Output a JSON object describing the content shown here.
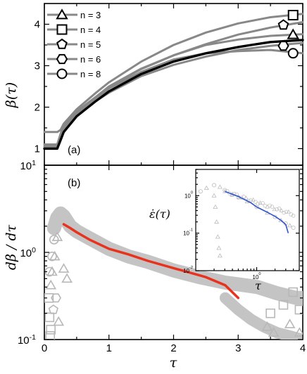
{
  "chart_data": [
    {
      "type": "line",
      "panel_label": "(a)",
      "ylabel": "β(τ)",
      "xlim": [
        0,
        4
      ],
      "ylim": [
        0.6,
        4.5
      ],
      "y_ticks": [
        "1",
        "2",
        "3",
        "4"
      ],
      "legend": {
        "placement": "top-left",
        "entries": [
          {
            "marker": "triangle",
            "label": "n = 3"
          },
          {
            "marker": "square",
            "label": "n = 4"
          },
          {
            "marker": "pentagon",
            "label": "n = 5"
          },
          {
            "marker": "hexagon",
            "label": "n = 6"
          },
          {
            "marker": "circle",
            "label": "n = 8"
          }
        ]
      },
      "series": [
        {
          "marker": "triangle",
          "color": "#888888",
          "x": [
            0,
            0.2,
            0.25,
            0.3,
            0.5,
            0.8,
            1.0,
            1.5,
            2.0,
            2.5,
            3.0,
            3.5,
            4.0
          ],
          "y": [
            1.1,
            1.1,
            1.35,
            1.55,
            1.9,
            2.25,
            2.5,
            2.93,
            3.25,
            3.5,
            3.63,
            3.72,
            3.76
          ],
          "end_marker": [
            3.85,
            3.75
          ]
        },
        {
          "marker": "square",
          "color": "#888888",
          "x": [
            0,
            0.2,
            0.25,
            0.3,
            0.5,
            0.8,
            1.0,
            1.5,
            2.0,
            2.5,
            3.0,
            3.5,
            4.0
          ],
          "y": [
            1.4,
            1.4,
            1.45,
            1.6,
            1.95,
            2.35,
            2.6,
            3.1,
            3.5,
            3.8,
            4.02,
            4.17,
            4.25
          ],
          "end_marker": [
            3.85,
            4.22
          ]
        },
        {
          "marker": "pentagon",
          "color": "#888888",
          "x": [
            0,
            0.2,
            0.25,
            0.3,
            0.5,
            0.8,
            1.0,
            1.5,
            2.0,
            2.5,
            3.0,
            3.5,
            4.0
          ],
          "y": [
            1.0,
            1.0,
            1.3,
            1.5,
            1.87,
            2.25,
            2.48,
            2.92,
            3.25,
            3.52,
            3.75,
            3.92,
            4.05
          ],
          "end_marker": [
            3.7,
            3.98
          ]
        },
        {
          "marker": "hexagon",
          "color": "#888888",
          "x": [
            0,
            0.2,
            0.25,
            0.3,
            0.5,
            0.8,
            1.0,
            1.5,
            2.0,
            2.5,
            3.0,
            3.5,
            4.0
          ],
          "y": [
            1.05,
            1.05,
            1.28,
            1.46,
            1.8,
            2.15,
            2.35,
            2.75,
            3.02,
            3.22,
            3.38,
            3.48,
            3.55
          ],
          "end_marker": [
            3.7,
            3.48
          ]
        },
        {
          "marker": "circle",
          "color": "#888888",
          "x": [
            0,
            0.2,
            0.25,
            0.3,
            0.5,
            0.8,
            1.0,
            1.5,
            2.0,
            2.5,
            3.0,
            3.5,
            4.0
          ],
          "y": [
            1.1,
            1.1,
            1.3,
            1.5,
            1.85,
            2.22,
            2.45,
            2.85,
            3.15,
            3.3,
            3.35,
            3.38,
            3.3
          ],
          "end_marker": [
            3.85,
            3.3
          ]
        },
        {
          "color": "#000000",
          "x": [
            0,
            0.2,
            0.25,
            0.3,
            0.5,
            0.8,
            1.0,
            1.5,
            2.0,
            2.5,
            3.0,
            3.2,
            3.5,
            3.8,
            4.0
          ],
          "y": [
            1.0,
            1.0,
            1.2,
            1.4,
            1.78,
            2.15,
            2.38,
            2.8,
            3.1,
            3.3,
            3.45,
            3.5,
            3.57,
            3.6,
            3.62
          ]
        }
      ]
    },
    {
      "type": "scatter",
      "panel_label": "(b)",
      "xlabel": "τ",
      "ylabel": "dβ / dτ",
      "xlim": [
        0,
        4
      ],
      "ylim": [
        0.1,
        10
      ],
      "yscale": "log",
      "x_ticks": [
        "0",
        "1",
        "2",
        "3",
        "4"
      ],
      "y_ticks": [
        {
          "base": "10",
          "exp": "-1",
          "value": 0.1
        },
        {
          "base": "10",
          "exp": "0",
          "value": 1
        },
        {
          "base": "10",
          "exp": "1",
          "value": 10
        }
      ],
      "gray_band": {
        "color": "#c4c4c4",
        "x": [
          0.15,
          0.2,
          0.25,
          0.3,
          0.4,
          0.5,
          0.7,
          1.0,
          1.3,
          1.6,
          2.0,
          2.4,
          2.8,
          3.0,
          3.3,
          3.6,
          3.9,
          4.0
        ],
        "y": [
          1.9,
          2.5,
          2.8,
          2.6,
          2.0,
          1.75,
          1.45,
          1.1,
          0.9,
          0.78,
          0.62,
          0.52,
          0.45,
          0.43,
          0.4,
          0.34,
          0.3,
          0.3
        ]
      },
      "red_line": {
        "color": "#e8321e",
        "x": [
          0.3,
          0.4,
          0.5,
          0.7,
          1.0,
          1.3,
          1.6,
          2.0,
          2.2,
          2.5,
          2.8,
          3.0
        ],
        "y": [
          2.1,
          1.9,
          1.7,
          1.4,
          1.1,
          0.95,
          0.8,
          0.66,
          0.6,
          0.52,
          0.42,
          0.3
        ]
      },
      "open_markers": {
        "color": "#b8b8b8",
        "points": [
          {
            "m": "triangle",
            "x": 0.1,
            "y": 0.42
          },
          {
            "m": "triangle",
            "x": 0.12,
            "y": 0.6
          },
          {
            "m": "triangle",
            "x": 0.16,
            "y": 0.9
          },
          {
            "m": "triangle",
            "x": 0.2,
            "y": 1.5
          },
          {
            "m": "triangle",
            "x": 0.3,
            "y": 0.65
          },
          {
            "m": "triangle",
            "x": 0.35,
            "y": 0.5
          },
          {
            "m": "triangle",
            "x": 0.22,
            "y": 0.16
          },
          {
            "m": "square",
            "x": 0.07,
            "y": 0.3
          },
          {
            "m": "square",
            "x": 0.08,
            "y": 0.18
          },
          {
            "m": "square",
            "x": 0.1,
            "y": 0.13
          },
          {
            "m": "square",
            "x": 0.09,
            "y": 0.11
          },
          {
            "m": "circle",
            "x": 0.12,
            "y": 0.9
          },
          {
            "m": "circle",
            "x": 0.15,
            "y": 1.4
          },
          {
            "m": "circle",
            "x": 0.08,
            "y": 0.6
          },
          {
            "m": "pentagon",
            "x": 0.14,
            "y": 0.22
          },
          {
            "m": "hexagon",
            "x": 0.18,
            "y": 0.3
          },
          {
            "m": "triangle",
            "x": 3.45,
            "y": 0.14
          },
          {
            "m": "triangle",
            "x": 3.55,
            "y": 0.12
          },
          {
            "m": "square",
            "x": 3.5,
            "y": 0.2
          },
          {
            "m": "square",
            "x": 3.7,
            "y": 0.25
          },
          {
            "m": "triangle",
            "x": 3.8,
            "y": 0.15
          },
          {
            "m": "triangle",
            "x": 3.95,
            "y": 0.12
          },
          {
            "m": "square",
            "x": 3.85,
            "y": 0.35
          },
          {
            "m": "square",
            "x": 3.95,
            "y": 0.22
          }
        ]
      },
      "lower_band": {
        "color": "#c4c4c4",
        "x": [
          2.8,
          3.0,
          3.2,
          3.4,
          3.6,
          3.8,
          4.0
        ],
        "y": [
          0.3,
          0.22,
          0.17,
          0.14,
          0.12,
          0.11,
          0.1
        ]
      },
      "inset": {
        "xlabel": "τ",
        "ylabel": "ε̇(τ)",
        "xscale": "log",
        "yscale": "log",
        "xlim": [
          0.1,
          5
        ],
        "ylim": [
          0.01,
          5
        ],
        "x_ticks": [
          {
            "base": "10",
            "exp": "0",
            "value": 1
          }
        ],
        "y_ticks": [
          {
            "base": "10",
            "exp": "-2",
            "value": 0.01
          },
          {
            "base": "10",
            "exp": "-1",
            "value": 0.1
          },
          {
            "base": "10",
            "exp": "0",
            "value": 1
          }
        ],
        "gray_series": {
          "color": "#bbbbbb",
          "x": [
            0.12,
            0.15,
            0.2,
            0.25,
            0.3,
            0.4,
            0.5,
            0.7,
            1.0,
            1.5,
            2.0,
            2.5,
            3.0,
            3.5,
            4.0
          ],
          "y": [
            1.3,
            1.6,
            1.9,
            1.7,
            1.4,
            1.1,
            0.9,
            0.7,
            0.5,
            0.35,
            0.27,
            0.22,
            0.18,
            0.16,
            0.14
          ]
        },
        "gray_dropoff": {
          "color": "#bbbbbb",
          "x": [
            0.2,
            0.21,
            0.22,
            0.23,
            0.24,
            0.25
          ],
          "y": [
            1.0,
            0.5,
            0.2,
            0.08,
            0.04,
            0.025
          ]
        },
        "blue_line": {
          "color": "#3355cc",
          "x": [
            0.3,
            0.5,
            0.8,
            1.0,
            1.5,
            2.0,
            2.5,
            3.0,
            3.3
          ],
          "y": [
            1.3,
            0.95,
            0.65,
            0.5,
            0.36,
            0.28,
            0.22,
            0.17,
            0.1
          ]
        }
      }
    }
  ]
}
